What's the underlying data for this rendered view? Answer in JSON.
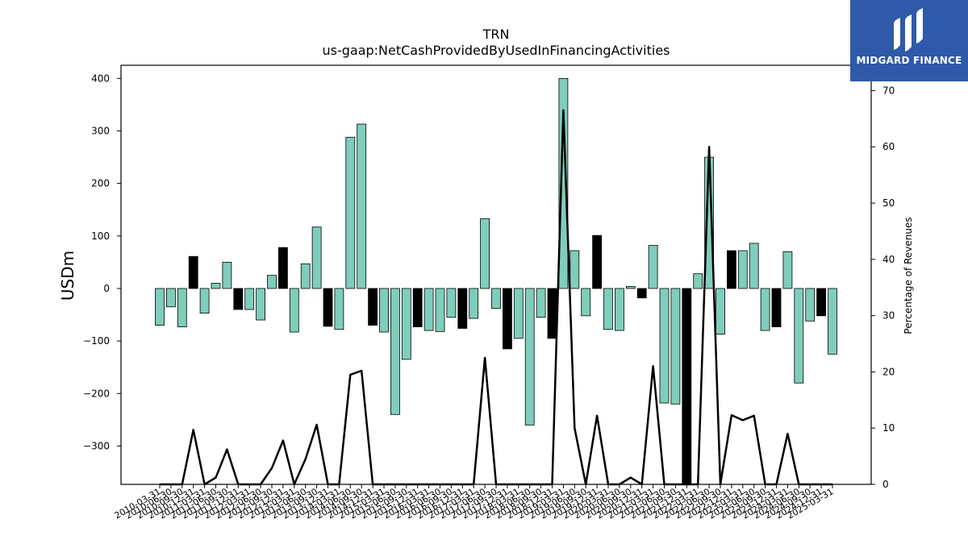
{
  "chart_data": {
    "type": "bar",
    "title": "TRN",
    "subtitle": "us-gaap:NetCashProvidedByUsedInFinancingActivities",
    "ylabel": "USDm",
    "ylabel_right": "Percentage of Revenues",
    "ylim": [
      -373,
      425
    ],
    "ylim_right": [
      0,
      74.5
    ],
    "yticks": [
      -300,
      -200,
      -100,
      0,
      100,
      200,
      300,
      400
    ],
    "yticks_right": [
      0,
      10,
      20,
      30,
      40,
      50,
      60,
      70
    ],
    "grid": false,
    "categories": [
      "2010-03-31",
      "2010-06-30",
      "2010-09-30",
      "2010-12-31",
      "2011-03-31",
      "2011-06-30",
      "2011-09-30",
      "2011-12-31",
      "2012-03-31",
      "2012-06-30",
      "2012-09-30",
      "2012-12-31",
      "2013-03-31",
      "2013-06-30",
      "2013-09-30",
      "2013-12-31",
      "2014-03-31",
      "2014-06-30",
      "2014-09-30",
      "2014-12-31",
      "2015-03-31",
      "2015-06-30",
      "2015-09-30",
      "2015-12-31",
      "2016-03-31",
      "2016-06-30",
      "2016-09-30",
      "2016-12-31",
      "2017-03-31",
      "2017-06-30",
      "2017-09-30",
      "2017-12-31",
      "2018-03-31",
      "2018-06-30",
      "2018-09-30",
      "2018-12-31",
      "2019-03-31",
      "2019-06-30",
      "2019-09-30",
      "2019-12-31",
      "2020-03-31",
      "2020-06-30",
      "2020-09-30",
      "2020-12-31",
      "2021-03-31",
      "2021-06-30",
      "2021-09-30",
      "2021-12-31",
      "2022-03-31",
      "2022-06-30",
      "2022-09-30",
      "2022-12-31",
      "2023-03-31",
      "2023-06-30",
      "2023-09-30",
      "2023-12-31",
      "2024-03-31",
      "2024-06-30",
      "2024-09-30",
      "2024-12-31",
      "2025-03-31"
    ],
    "values": [
      -70,
      -35,
      -73,
      61,
      -47,
      10,
      50,
      -40,
      -40,
      -60,
      25,
      78,
      -83,
      47,
      117,
      -72,
      -78,
      288,
      313,
      -70,
      -83,
      -240,
      -135,
      -73,
      -80,
      -82,
      -55,
      -76,
      -57,
      133,
      -38,
      -115,
      -95,
      -260,
      -55,
      -95,
      400,
      72,
      -52,
      101,
      -78,
      -80,
      4,
      -18,
      82,
      -218,
      -220,
      -373,
      28,
      250,
      -87,
      72,
      72,
      86,
      -80,
      -73,
      70,
      -180,
      -62,
      -52,
      -125
    ],
    "bar_colors": [
      "teal",
      "teal",
      "teal",
      "black",
      "teal",
      "teal",
      "teal",
      "black",
      "teal",
      "teal",
      "teal",
      "black",
      "teal",
      "teal",
      "teal",
      "black",
      "teal",
      "teal",
      "teal",
      "black",
      "teal",
      "teal",
      "teal",
      "black",
      "teal",
      "teal",
      "teal",
      "black",
      "teal",
      "teal",
      "teal",
      "black",
      "teal",
      "teal",
      "teal",
      "black",
      "teal",
      "teal",
      "teal",
      "black",
      "teal",
      "teal",
      "teal",
      "black",
      "teal",
      "teal",
      "teal",
      "black",
      "teal",
      "teal",
      "teal",
      "black",
      "teal",
      "teal",
      "teal",
      "black",
      "teal",
      "teal",
      "teal",
      "black",
      "teal"
    ],
    "pct_of_revenues": [
      0,
      0,
      0,
      9.7,
      0,
      1.2,
      6.2,
      0,
      0,
      0,
      2.9,
      7.8,
      0,
      4.5,
      10.6,
      0,
      0,
      19.5,
      20.2,
      0,
      0,
      0,
      0,
      0,
      0,
      0,
      0,
      0,
      0,
      22.5,
      0,
      0,
      0,
      0,
      0,
      0,
      66.5,
      10,
      0,
      12.2,
      0,
      0,
      1.2,
      0,
      21,
      0,
      0,
      0,
      0,
      60,
      0,
      12.3,
      11.4,
      12.2,
      0,
      0,
      9,
      0,
      0,
      0,
      0
    ],
    "colors": {
      "teal": "#7fcdbb",
      "black": "#000000",
      "line": "#000000"
    }
  },
  "logo": {
    "text": "MIDGARD FINANCE",
    "background": "#2e5aa9"
  }
}
